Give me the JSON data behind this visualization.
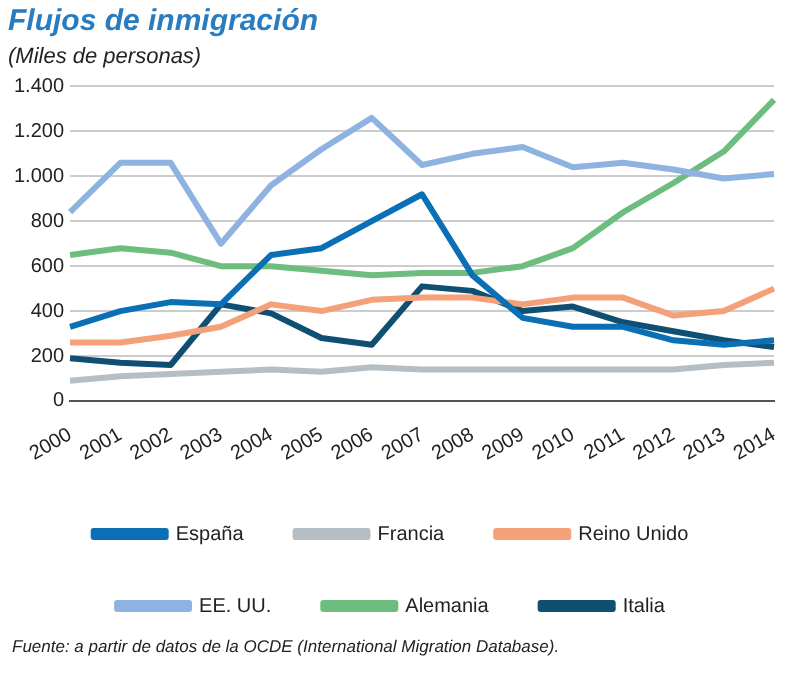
{
  "chart_data": {
    "type": "line",
    "title": "Flujos de inmigración",
    "subtitle": "(Miles de personas)",
    "categories": [
      "2000",
      "2001",
      "2002",
      "2003",
      "2004",
      "2005",
      "2006",
      "2007",
      "2008",
      "2009",
      "2010",
      "2011",
      "2012",
      "2013",
      "2014"
    ],
    "series": [
      {
        "name": "España",
        "color": "#0a6fb5",
        "values": [
          330,
          400,
          440,
          430,
          650,
          680,
          800,
          920,
          560,
          370,
          330,
          330,
          270,
          250,
          270
        ]
      },
      {
        "name": "Francia",
        "color": "#b5bec4",
        "values": [
          90,
          110,
          120,
          130,
          140,
          130,
          150,
          140,
          140,
          140,
          140,
          140,
          140,
          160,
          170
        ]
      },
      {
        "name": "Reino Unido",
        "color": "#f4a079",
        "values": [
          260,
          260,
          290,
          330,
          430,
          400,
          450,
          460,
          460,
          430,
          460,
          460,
          380,
          400,
          500
        ]
      },
      {
        "name": "EE. UU.",
        "color": "#8fb3e0",
        "values": [
          840,
          1060,
          1060,
          700,
          960,
          1120,
          1260,
          1050,
          1100,
          1130,
          1040,
          1060,
          1030,
          990,
          1010
        ]
      },
      {
        "name": "Alemania",
        "color": "#6dbd7f",
        "values": [
          650,
          680,
          660,
          600,
          600,
          580,
          560,
          570,
          570,
          600,
          680,
          840,
          970,
          1110,
          1340
        ]
      },
      {
        "name": "Italia",
        "color": "#0e4f72",
        "values": [
          190,
          170,
          160,
          430,
          390,
          280,
          250,
          510,
          490,
          400,
          420,
          350,
          310,
          270,
          240
        ]
      }
    ],
    "ylim": [
      0,
      1400
    ],
    "yticks": [
      0,
      {
        "value": 200,
        "label": "200"
      },
      {
        "value": 400,
        "label": "400"
      },
      {
        "value": 600,
        "label": "600"
      },
      {
        "value": 800,
        "label": "800"
      },
      {
        "value": 1000,
        "label": "1.000"
      },
      {
        "value": 1200,
        "label": "1.200"
      },
      {
        "value": 1400,
        "label": "1.400"
      }
    ],
    "grid": "y",
    "legend": "bottom",
    "marker": "none",
    "line_style": "solid",
    "annotations": [
      "Fuente: a partir de datos de la OCDE (International Migration Database)."
    ]
  }
}
